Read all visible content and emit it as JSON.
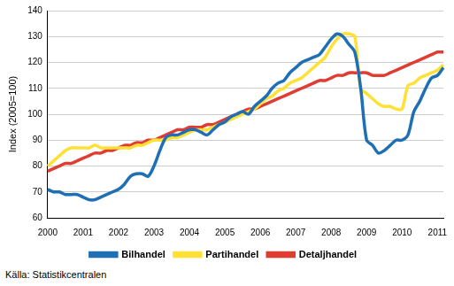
{
  "chart_data": {
    "type": "line",
    "y_label": "Index (2005=100)",
    "source": "Källa: Statistikcentralen",
    "legend": "bottom",
    "grid": true,
    "ylim": [
      60,
      140
    ],
    "yticks": [
      60,
      70,
      80,
      90,
      100,
      110,
      120,
      130,
      140
    ],
    "categories": [
      "2000",
      null,
      null,
      null,
      null,
      null,
      "2001",
      null,
      null,
      null,
      null,
      null,
      "2002",
      null,
      null,
      null,
      null,
      null,
      "2003",
      null,
      null,
      null,
      null,
      null,
      "2004",
      null,
      null,
      null,
      null,
      null,
      "2005",
      null,
      null,
      null,
      null,
      null,
      "2006",
      null,
      null,
      null,
      null,
      null,
      "2007",
      null,
      null,
      null,
      null,
      null,
      "2008",
      null,
      null,
      null,
      null,
      null,
      "2009",
      null,
      null,
      null,
      null,
      null,
      "2010",
      null,
      null,
      null,
      null,
      null,
      "2011",
      null
    ],
    "series": [
      {
        "name": "Bilhandel",
        "color": "#1f6fb5",
        "values": [
          71,
          70,
          70,
          69,
          69,
          69,
          68,
          67,
          67,
          68,
          69,
          70,
          71,
          73,
          76,
          77,
          77,
          76,
          80,
          86,
          91,
          92,
          92,
          93,
          94,
          94,
          93,
          92,
          94,
          96,
          97,
          99,
          100,
          101,
          100,
          103,
          105,
          107,
          110,
          112,
          113,
          116,
          118,
          120,
          121,
          122,
          123,
          126,
          129,
          131,
          130,
          127,
          124,
          110,
          90,
          88,
          85,
          86,
          88,
          90,
          90,
          92,
          101,
          105,
          110,
          114,
          115,
          118
        ]
      },
      {
        "name": "Partihandel",
        "color": "#ffe135",
        "values": [
          80,
          82,
          84,
          86,
          87,
          87,
          87,
          87,
          88,
          87,
          87,
          87,
          87,
          87,
          87,
          88,
          88,
          89,
          90,
          90,
          90,
          91,
          91,
          92,
          93,
          94,
          94,
          94,
          95,
          96,
          97,
          98,
          99,
          100,
          101,
          102,
          104,
          106,
          107,
          109,
          110,
          112,
          113,
          114,
          116,
          118,
          120,
          122,
          126,
          129,
          131,
          131,
          130,
          110,
          108,
          106,
          104,
          103,
          103,
          102,
          102,
          111,
          112,
          114,
          115,
          116,
          117,
          119
        ]
      },
      {
        "name": "Detaljhandel",
        "color": "#e03c31",
        "values": [
          78,
          79,
          80,
          81,
          81,
          82,
          83,
          84,
          85,
          85,
          86,
          86,
          87,
          88,
          88,
          89,
          89,
          90,
          90,
          91,
          92,
          93,
          94,
          94,
          95,
          95,
          95,
          96,
          96,
          97,
          98,
          99,
          100,
          101,
          102,
          102,
          103,
          104,
          105,
          106,
          107,
          108,
          109,
          110,
          111,
          112,
          113,
          113,
          114,
          115,
          115,
          116,
          116,
          116,
          116,
          115,
          115,
          115,
          116,
          117,
          118,
          119,
          120,
          121,
          122,
          123,
          124,
          124
        ]
      }
    ]
  }
}
